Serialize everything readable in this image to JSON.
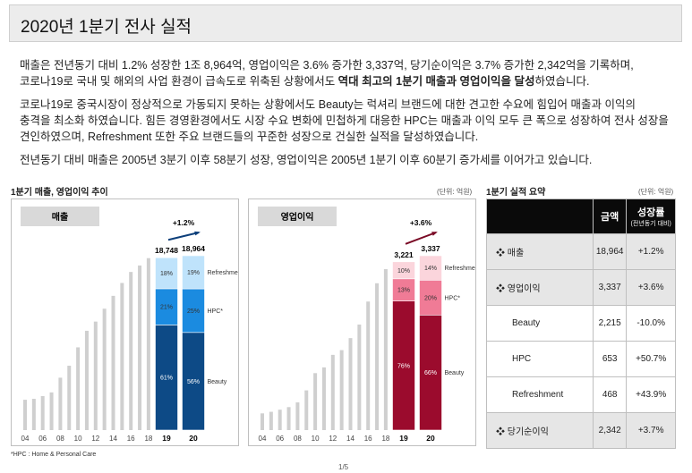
{
  "header": {
    "title": "2020년 1분기 전사 실적"
  },
  "paragraphs": [
    [
      [
        {
          "text": "매출은 전년동기 대비 1.2% 성장한 1조 8,964억, 영업이익은 3.6% 증가한 3,337억, 당기순이익은 3.7% 증가한 2,342억을 기록하며,"
        }
      ],
      [
        {
          "text": "코로나19로 국내 및 해외의 사업 환경이 급속도로 위축된 상황에서도 "
        },
        {
          "text": "역대 최고의 1분기 매출과 영업이익을 달성",
          "bold": true
        },
        {
          "text": "하였습니다."
        }
      ]
    ],
    [
      [
        {
          "text": "코로나19로 중국시장이 정상적으로 가동되지 못하는 상황에서도 Beauty는 럭셔리 브랜드에 대한 견고한 수요에 힘입어 매출과 이익의"
        }
      ],
      [
        {
          "text": "충격을 최소화 하였습니다. 힘든 경영환경에서도 시장 수요 변화에 민첩하게 대응한 HPC는 매출과 이익 모두 큰 폭으로 성장하여 전사 성장을"
        }
      ],
      [
        {
          "text": "견인하였으며, Refreshment 또한 주요 브랜드들의 꾸준한 성장으로 건실한 실적을 달성하였습니다."
        }
      ]
    ],
    [
      [
        {
          "text": "전년동기 대비 매출은 2005년 3분기 이후 58분기 성장, 영업이익은 2005년 1분기 이후 60분기 증가세를 이어가고 있습니다."
        }
      ]
    ]
  ],
  "section_titles": [
    "1분기 매출, 영업이익 추이",
    "1분기 실적 요약"
  ],
  "units": [
    "(단위: 억원)",
    "(단위: 억원)"
  ],
  "chart_data": [
    {
      "type": "bar",
      "title": "매출",
      "color": "#cfcfcf",
      "categories": [
        "04",
        null,
        "06",
        null,
        "08",
        null,
        "10",
        null,
        "12",
        null,
        "14",
        null,
        "16",
        null,
        "18"
      ],
      "values": [
        3300,
        3400,
        3700,
        4100,
        5700,
        7000,
        9000,
        10800,
        11800,
        13200,
        14600,
        16000,
        17200,
        17900,
        18700
      ],
      "stacked": {
        "categories": [
          "19",
          "20"
        ],
        "totals": [
          18748,
          18964
        ],
        "total_labels": [
          "18,748",
          "18,964"
        ],
        "growth_label": "+1.2%",
        "arrow_color": "#0d3f7a",
        "series": [
          {
            "name": "Beauty",
            "color": "#0d4a86",
            "values": [
              61,
              56
            ],
            "value_labels": [
              "61%",
              "56%"
            ]
          },
          {
            "name": "HPC*",
            "color": "#1b8be0",
            "values": [
              21,
              25
            ],
            "value_labels": [
              "21%",
              "25%"
            ]
          },
          {
            "name": "Refreshment",
            "color": "#bfe3fb",
            "values": [
              18,
              19
            ],
            "value_labels": [
              "18%",
              "19%"
            ]
          }
        ]
      }
    },
    {
      "type": "bar",
      "title": "영업이익",
      "color": "#cfcfcf",
      "categories": [
        "04",
        null,
        "06",
        null,
        "08",
        null,
        "10",
        null,
        "12",
        null,
        "14",
        null,
        "16",
        null,
        "18"
      ],
      "values": [
        320,
        350,
        390,
        440,
        530,
        760,
        1090,
        1200,
        1440,
        1530,
        1760,
        2020,
        2460,
        2810,
        3080
      ],
      "stacked": {
        "categories": [
          "19",
          "20"
        ],
        "totals": [
          3221,
          3337
        ],
        "total_labels": [
          "3,221",
          "3,337"
        ],
        "growth_label": "+3.6%",
        "arrow_color": "#7a0a25",
        "series": [
          {
            "name": "Beauty",
            "color": "#9b0b2d",
            "values": [
              76,
              66
            ],
            "value_labels": [
              "76%",
              "66%"
            ]
          },
          {
            "name": "HPC*",
            "color": "#f07b96",
            "values": [
              13,
              20
            ],
            "value_labels": [
              "13%",
              "20%"
            ]
          },
          {
            "name": "Refreshment",
            "color": "#fbd5dc",
            "values": [
              10,
              14
            ],
            "value_labels": [
              "10%",
              "14%"
            ]
          }
        ]
      }
    }
  ],
  "table": {
    "header": [
      "금액",
      "성장률"
    ],
    "header_note": "(전년동기 대비)",
    "rows": [
      [
        "❖ 매출",
        "18,964",
        "+1.2%"
      ],
      [
        "❖ 영업이익",
        "3,337",
        "+3.6%"
      ],
      [
        "Beauty",
        "2,215",
        "-10.0%"
      ],
      [
        "HPC",
        "653",
        "+50.7%"
      ],
      [
        "Refreshment",
        "468",
        "+43.9%"
      ],
      [
        "❖ 당기순이익",
        "2,342",
        "+3.7%"
      ]
    ]
  },
  "footnote": "*HPC : Home & Personal Care",
  "page_number": "1/5"
}
